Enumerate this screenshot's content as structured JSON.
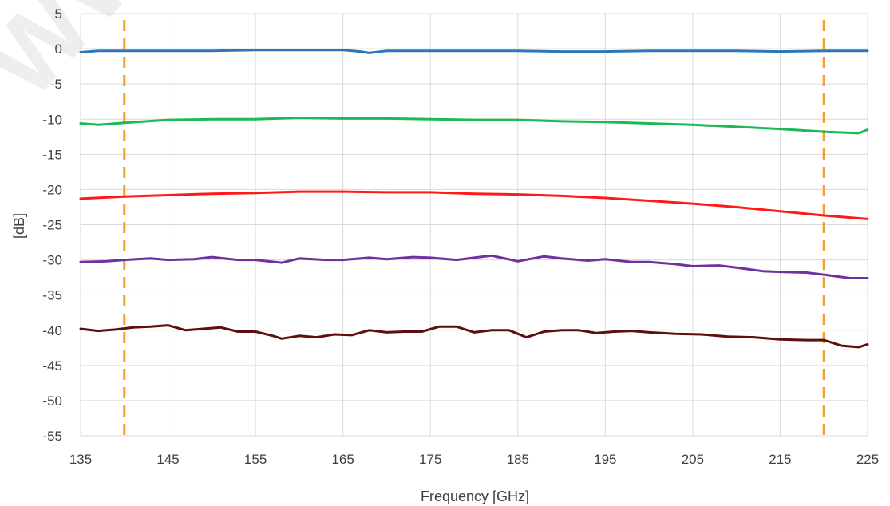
{
  "chart_data": {
    "type": "line",
    "title": "",
    "xlabel": "Frequency [GHz]",
    "ylabel": "[dB]",
    "xlim": [
      135,
      225
    ],
    "ylim": [
      -55,
      5
    ],
    "xticks": [
      135,
      145,
      155,
      165,
      175,
      185,
      195,
      205,
      215,
      225
    ],
    "yticks": [
      5,
      0,
      -5,
      -10,
      -15,
      -20,
      -25,
      -30,
      -35,
      -40,
      -45,
      -50,
      -55
    ],
    "grid": "vertical-and-horizontal",
    "legend": "none",
    "watermark": "WW",
    "vertical_markers": [
      {
        "x": 140,
        "color": "#f4a028"
      },
      {
        "x": 220,
        "color": "#f4a028"
      }
    ],
    "series": [
      {
        "color": "#2e75b6",
        "x": [
          135,
          137,
          140,
          145,
          150,
          155,
          160,
          165,
          167,
          168,
          170,
          175,
          180,
          185,
          190,
          195,
          200,
          205,
          210,
          215,
          220,
          225
        ],
        "y": [
          -0.5,
          -0.3,
          -0.3,
          -0.3,
          -0.3,
          -0.2,
          -0.2,
          -0.2,
          -0.4,
          -0.6,
          -0.3,
          -0.3,
          -0.3,
          -0.3,
          -0.4,
          -0.4,
          -0.3,
          -0.3,
          -0.3,
          -0.4,
          -0.3,
          -0.3
        ]
      },
      {
        "color": "#1db954",
        "x": [
          135,
          137,
          140,
          145,
          150,
          155,
          160,
          165,
          170,
          175,
          180,
          185,
          190,
          195,
          200,
          205,
          210,
          215,
          220,
          224,
          225
        ],
        "y": [
          -10.6,
          -10.8,
          -10.5,
          -10.1,
          -10.0,
          -10.0,
          -9.8,
          -9.9,
          -9.9,
          -10.0,
          -10.1,
          -10.1,
          -10.3,
          -10.4,
          -10.6,
          -10.8,
          -11.1,
          -11.4,
          -11.8,
          -12.0,
          -11.5
        ]
      },
      {
        "color": "#ff1a1a",
        "x": [
          135,
          140,
          145,
          150,
          155,
          160,
          165,
          170,
          175,
          180,
          185,
          190,
          195,
          200,
          205,
          210,
          215,
          220,
          225
        ],
        "y": [
          -21.3,
          -21.0,
          -20.8,
          -20.6,
          -20.5,
          -20.3,
          -20.3,
          -20.4,
          -20.4,
          -20.6,
          -20.7,
          -20.9,
          -21.2,
          -21.6,
          -22.0,
          -22.5,
          -23.1,
          -23.7,
          -24.2
        ]
      },
      {
        "color": "#7030a0",
        "x": [
          135,
          138,
          140,
          143,
          145,
          148,
          150,
          153,
          155,
          158,
          160,
          163,
          165,
          168,
          170,
          173,
          175,
          178,
          180,
          182,
          185,
          188,
          190,
          193,
          195,
          198,
          200,
          203,
          205,
          208,
          210,
          213,
          215,
          218,
          220,
          223,
          225
        ],
        "y": [
          -30.3,
          -30.2,
          -30.0,
          -29.8,
          -30.0,
          -29.9,
          -29.6,
          -30.0,
          -30.0,
          -30.4,
          -29.8,
          -30.0,
          -30.0,
          -29.7,
          -29.9,
          -29.6,
          -29.7,
          -30.0,
          -29.7,
          -29.4,
          -30.2,
          -29.5,
          -29.8,
          -30.1,
          -29.9,
          -30.3,
          -30.3,
          -30.6,
          -30.9,
          -30.8,
          -31.1,
          -31.6,
          -31.7,
          -31.8,
          -32.1,
          -32.6,
          -32.6
        ]
      },
      {
        "color": "#5c0f0f",
        "x": [
          135,
          137,
          139,
          141,
          143,
          145,
          147,
          149,
          151,
          153,
          155,
          157,
          158,
          160,
          162,
          164,
          166,
          168,
          170,
          172,
          174,
          176,
          178,
          180,
          182,
          184,
          186,
          188,
          190,
          192,
          194,
          196,
          198,
          200,
          203,
          206,
          209,
          212,
          215,
          218,
          220,
          222,
          224,
          225
        ],
        "y": [
          -39.8,
          -40.1,
          -39.9,
          -39.6,
          -39.5,
          -39.3,
          -40.0,
          -39.8,
          -39.6,
          -40.2,
          -40.2,
          -40.8,
          -41.2,
          -40.8,
          -41.0,
          -40.6,
          -40.7,
          -40.0,
          -40.3,
          -40.2,
          -40.2,
          -39.5,
          -39.5,
          -40.3,
          -40.0,
          -40.0,
          -41.0,
          -40.2,
          -40.0,
          -40.0,
          -40.4,
          -40.2,
          -40.1,
          -40.3,
          -40.5,
          -40.6,
          -40.9,
          -41.0,
          -41.3,
          -41.4,
          -41.4,
          -42.2,
          -42.4,
          -42.0
        ]
      }
    ]
  }
}
